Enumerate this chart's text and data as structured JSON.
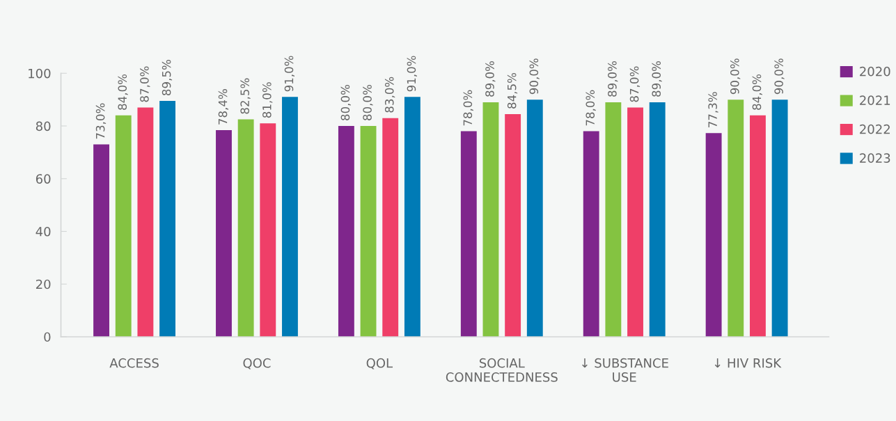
{
  "chart_data": {
    "type": "bar",
    "categories": [
      "ACCESS",
      "QOC",
      "QOL",
      "SOCIAL\nCONNECTEDNESS",
      "↓ SUBSTANCE\nUSE",
      "↓ HIV RISK"
    ],
    "series": [
      {
        "name": "2020",
        "color": "#7f268c",
        "values": [
          73.0,
          78.4,
          80.0,
          78.0,
          78.0,
          77.3
        ],
        "value_labels": [
          "73,0%",
          "78,4%",
          "80,0%",
          "78,0%",
          "78,0%",
          "77,3%"
        ]
      },
      {
        "name": "2021",
        "color": "#84c341",
        "values": [
          84.0,
          82.5,
          80.0,
          89.0,
          89.0,
          90.0
        ],
        "value_labels": [
          "84,0%",
          "82,5%",
          "80,0%",
          "89,0%",
          "89,0%",
          "90,0%"
        ]
      },
      {
        "name": "2022",
        "color": "#ef3f68",
        "values": [
          87.0,
          81.0,
          83.0,
          84.5,
          87.0,
          84.0
        ],
        "value_labels": [
          "87,0%",
          "81,0%",
          "83,0%",
          "84,5%",
          "87,0%",
          "84,0%"
        ]
      },
      {
        "name": "2023",
        "color": "#007bb6",
        "values": [
          89.5,
          91.0,
          91.0,
          90.0,
          89.0,
          90.0
        ],
        "value_labels": [
          "89,5%",
          "91,0%",
          "91,0%",
          "90,0%",
          "89,0%",
          "90,0%"
        ]
      }
    ],
    "ylim": [
      0,
      100
    ],
    "yticks": [
      0,
      20,
      40,
      60,
      80,
      100
    ],
    "grid": false,
    "legend": "top right"
  }
}
